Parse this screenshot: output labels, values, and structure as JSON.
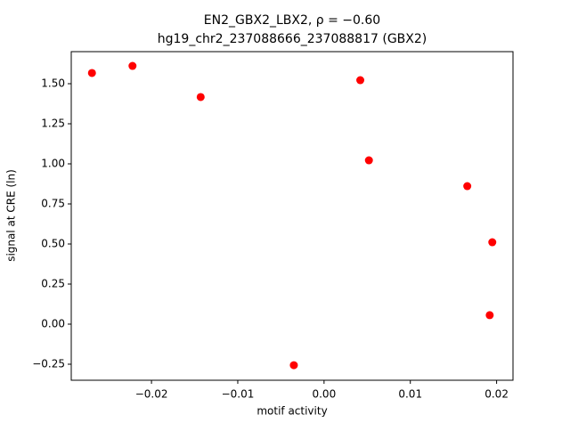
{
  "chart_data": {
    "type": "scatter",
    "title": "EN2_GBX2_LBX2, ρ = −0.60",
    "subtitle": "hg19_chr2_237088666_237088817 (GBX2)",
    "x_label": "motif activity",
    "y_label": "signal at CRE (ln)",
    "series": [
      {
        "color": "#ff0000",
        "x": [
          -0.0269,
          -0.0222,
          -0.0143,
          0.0042,
          0.0052,
          0.0166,
          0.0195,
          0.0192,
          -0.0035
        ],
        "values": [
          1.567,
          1.611,
          1.417,
          1.522,
          1.022,
          0.861,
          0.511,
          0.056,
          -0.256
        ]
      }
    ],
    "xlim": [
      -0.0293,
      0.0219
    ],
    "ylim": [
      -0.35,
      1.7
    ],
    "xticks": [
      {
        "value": -0.02,
        "label": "−0.02"
      },
      {
        "value": -0.01,
        "label": "−0.01"
      },
      {
        "value": 0,
        "label": "0.00"
      },
      0.01,
      0.02
    ],
    "yticks": [
      {
        "value": -0.25,
        "label": "−0.25"
      },
      {
        "value": 0,
        "label": "0.00"
      },
      0.25,
      {
        "value": 0.5,
        "label": "0.50"
      },
      0.75,
      {
        "value": 1,
        "label": "1.00"
      },
      1.25,
      {
        "value": 1.5,
        "label": "1.50"
      }
    ],
    "grid": false
  }
}
